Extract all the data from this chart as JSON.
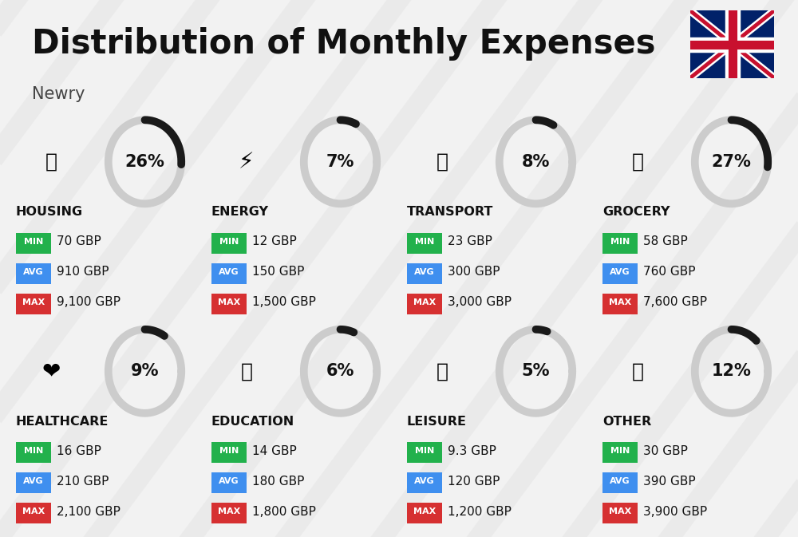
{
  "title": "Distribution of Monthly Expenses",
  "subtitle": "Newry",
  "background_color": "#f2f2f2",
  "categories": [
    {
      "name": "HOUSING",
      "percent": 26,
      "min": "70 GBP",
      "avg": "910 GBP",
      "max": "9,100 GBP",
      "row": 0,
      "col": 0
    },
    {
      "name": "ENERGY",
      "percent": 7,
      "min": "12 GBP",
      "avg": "150 GBP",
      "max": "1,500 GBP",
      "row": 0,
      "col": 1
    },
    {
      "name": "TRANSPORT",
      "percent": 8,
      "min": "23 GBP",
      "avg": "300 GBP",
      "max": "3,000 GBP",
      "row": 0,
      "col": 2
    },
    {
      "name": "GROCERY",
      "percent": 27,
      "min": "58 GBP",
      "avg": "760 GBP",
      "max": "7,600 GBP",
      "row": 0,
      "col": 3
    },
    {
      "name": "HEALTHCARE",
      "percent": 9,
      "min": "16 GBP",
      "avg": "210 GBP",
      "max": "2,100 GBP",
      "row": 1,
      "col": 0
    },
    {
      "name": "EDUCATION",
      "percent": 6,
      "min": "14 GBP",
      "avg": "180 GBP",
      "max": "1,800 GBP",
      "row": 1,
      "col": 1
    },
    {
      "name": "LEISURE",
      "percent": 5,
      "min": "9.3 GBP",
      "avg": "120 GBP",
      "max": "1,200 GBP",
      "row": 1,
      "col": 2
    },
    {
      "name": "OTHER",
      "percent": 12,
      "min": "30 GBP",
      "avg": "390 GBP",
      "max": "3,900 GBP",
      "row": 1,
      "col": 3
    }
  ],
  "min_color": "#22b14c",
  "avg_color": "#3f8fef",
  "max_color": "#d63031",
  "donut_filled_color": "#1a1a1a",
  "donut_empty_color": "#cccccc",
  "donut_lw": 7,
  "title_fontsize": 30,
  "subtitle_fontsize": 15,
  "cat_fontsize": 11.5,
  "val_fontsize": 11,
  "badge_fontsize": 8,
  "pct_fontsize": 15
}
